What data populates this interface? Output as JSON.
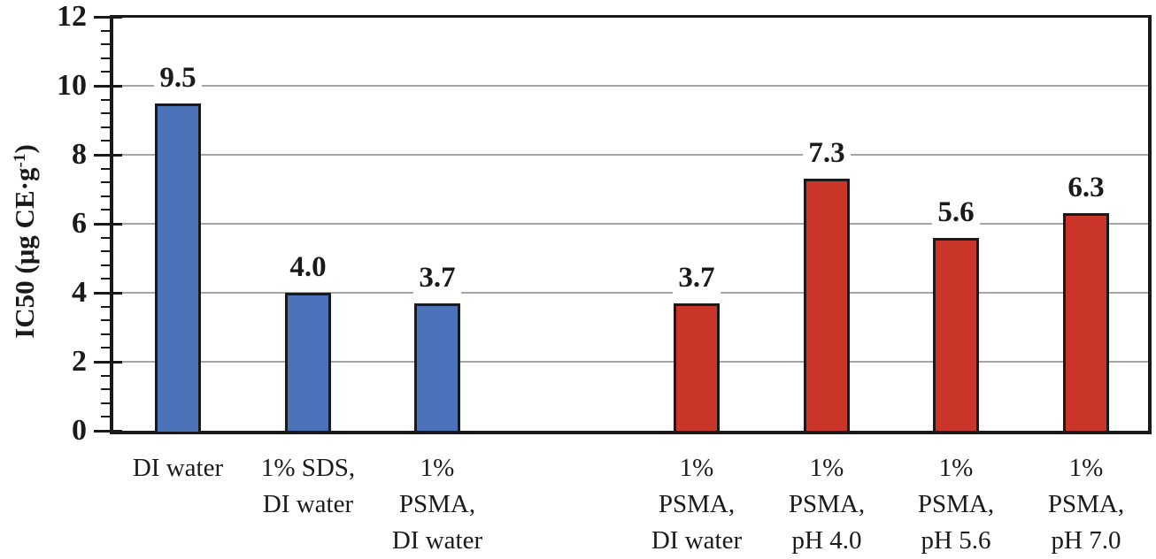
{
  "chart_data": {
    "type": "bar",
    "title": "",
    "ylabel": {
      "pre": "IC50 (μg CE·g",
      "sup": "-1",
      "post": ")"
    },
    "xlabel": "",
    "ylim": [
      0,
      12
    ],
    "ymajor_step": 2,
    "yminor_step": 0.4,
    "ytick_labels": [
      "0",
      "2",
      "4",
      "6",
      "8",
      "10",
      "12"
    ],
    "grid": true,
    "legend": "none",
    "n_slots": 8,
    "bars": [
      {
        "slot": 0,
        "value": 9.5,
        "value_label": "9.5",
        "series": "aqueous-blue",
        "category_lines": [
          "DI water"
        ]
      },
      {
        "slot": 1,
        "value": 4.0,
        "value_label": "4.0",
        "series": "aqueous-blue",
        "category_lines": [
          "1% SDS,",
          "DI water"
        ]
      },
      {
        "slot": 2,
        "value": 3.7,
        "value_label": "3.7",
        "series": "aqueous-blue",
        "category_lines": [
          "1%",
          "PSMA,",
          "DI water"
        ]
      },
      {
        "slot": 4,
        "value": 3.7,
        "value_label": "3.7",
        "series": "psma-red",
        "category_lines": [
          "1%",
          "PSMA,",
          "DI water"
        ]
      },
      {
        "slot": 5,
        "value": 7.3,
        "value_label": "7.3",
        "series": "psma-red",
        "category_lines": [
          "1%",
          "PSMA,",
          "pH 4.0"
        ]
      },
      {
        "slot": 6,
        "value": 5.6,
        "value_label": "5.6",
        "series": "psma-red",
        "category_lines": [
          "1%",
          "PSMA,",
          "pH 5.6"
        ]
      },
      {
        "slot": 7,
        "value": 6.3,
        "value_label": "6.3",
        "series": "psma-red",
        "category_lines": [
          "1%",
          "PSMA,",
          "pH 7.0"
        ]
      }
    ],
    "colors": {
      "aqueous-blue": "#4B72B8",
      "psma-red": "#C93529",
      "gridline": "#A6A6A6",
      "axis": "#1A1A1A",
      "text": "#1A1A1A"
    }
  }
}
